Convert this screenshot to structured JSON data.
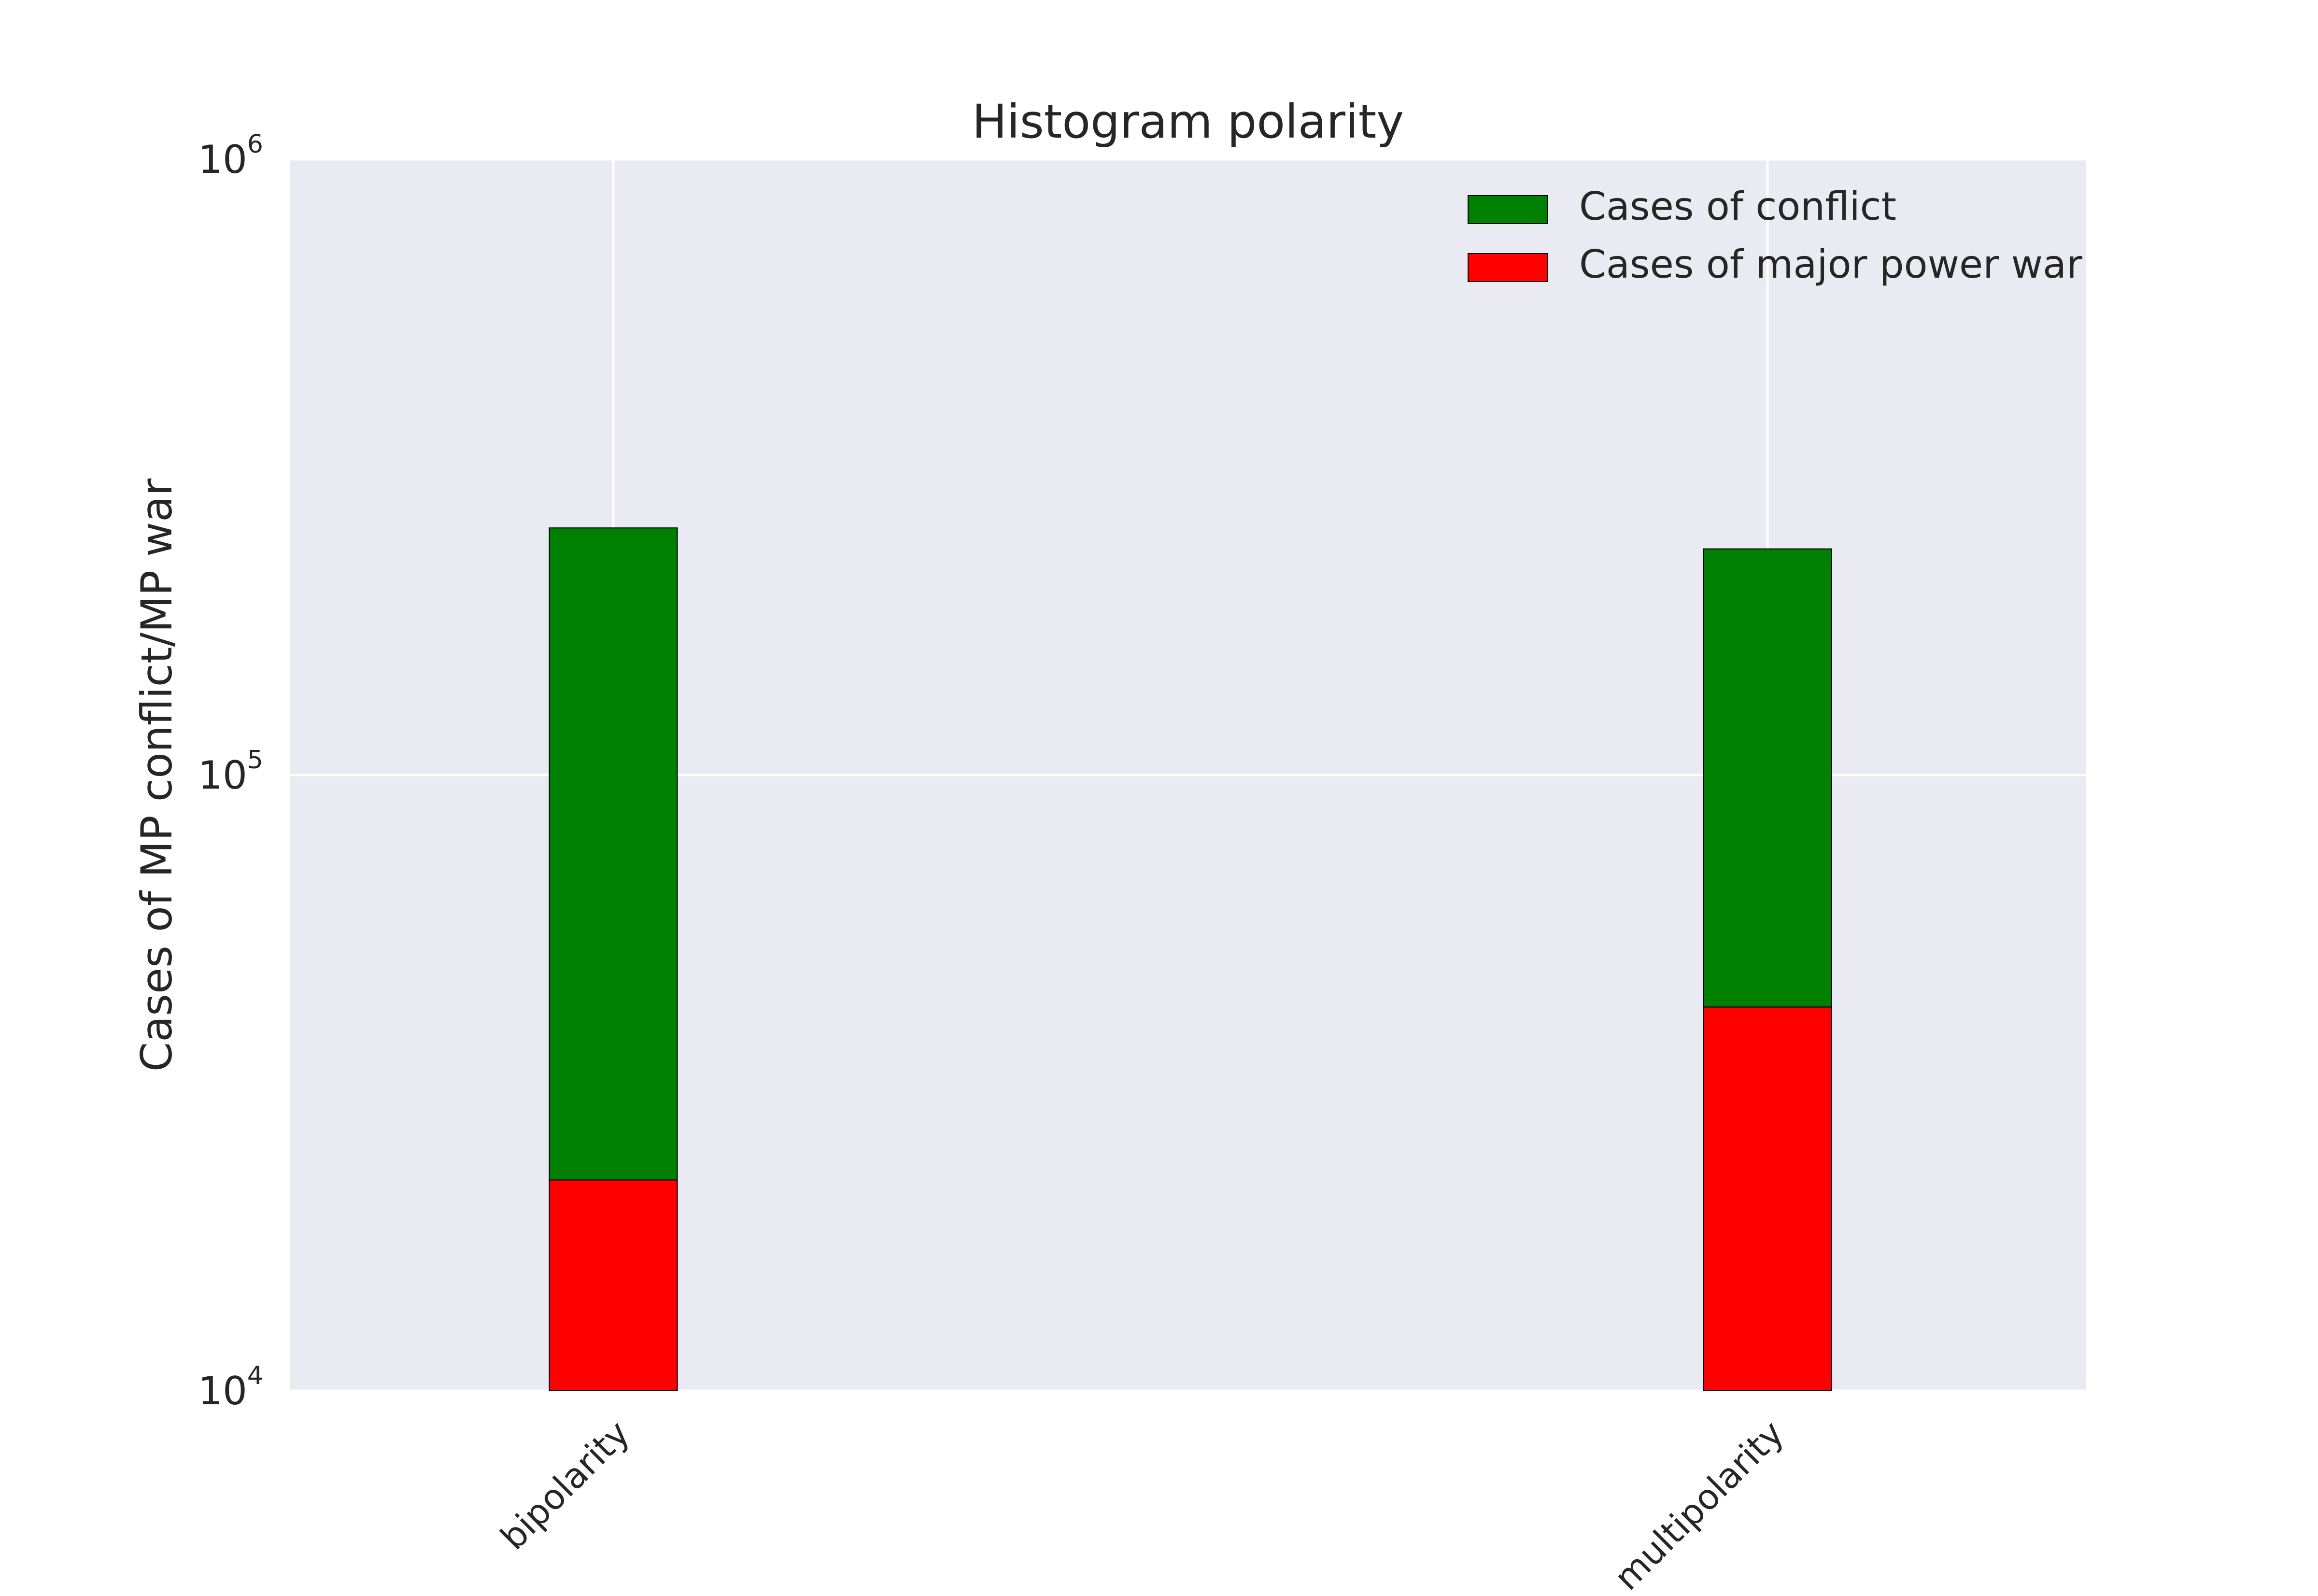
{
  "chart_data": {
    "type": "bar",
    "stacked": true,
    "title": "Histogram polarity",
    "xlabel": "",
    "ylabel": "Cases of MP conflict/MP war",
    "yscale": "log",
    "ylim": [
      10000,
      1000000
    ],
    "yticks": [
      {
        "value": 10000,
        "base": "10",
        "exp": "4"
      },
      {
        "value": 100000,
        "base": "10",
        "exp": "5"
      },
      {
        "value": 1000000,
        "base": "10",
        "exp": "6"
      }
    ],
    "categories": [
      "bipolarity",
      "multipolarity"
    ],
    "series": [
      {
        "name": "Cases of major power war",
        "color": "#ff0000",
        "values": [
          22000,
          42000
        ]
      },
      {
        "name": "Cases of conflict",
        "color": "#008000",
        "values": [
          230000,
          191000
        ]
      }
    ],
    "legend": {
      "placement": "top-right",
      "order": [
        "Cases of conflict",
        "Cases of major power war"
      ]
    },
    "grid": true,
    "colors": {
      "plot_background": "#eaeaf2",
      "grid": "#ffffff",
      "bar_edge": "#000000"
    }
  }
}
